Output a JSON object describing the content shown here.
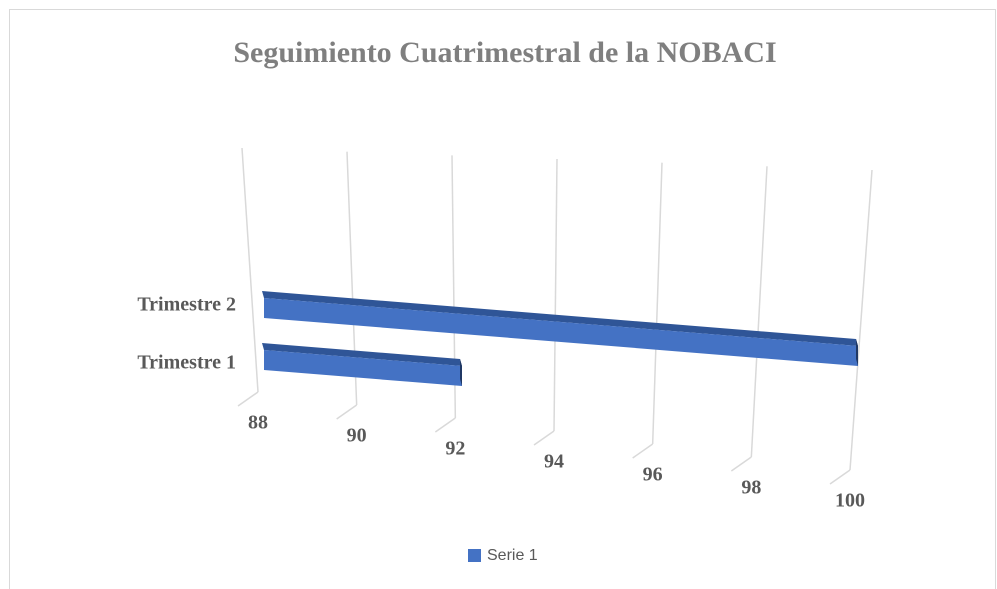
{
  "chart_data": {
    "type": "bar",
    "title": "Seguimiento Cuatrimestral de la NOBACI",
    "categories": [
      "Trimestre 1",
      "Trimestre 2"
    ],
    "series": [
      {
        "name": "Serie 1",
        "color": "#4472c4",
        "values": [
          92,
          100
        ]
      }
    ],
    "xlim": [
      88,
      100
    ],
    "xticks": [
      88,
      90,
      92,
      94,
      96,
      98,
      100
    ],
    "grid": true,
    "legend": "bottom"
  }
}
